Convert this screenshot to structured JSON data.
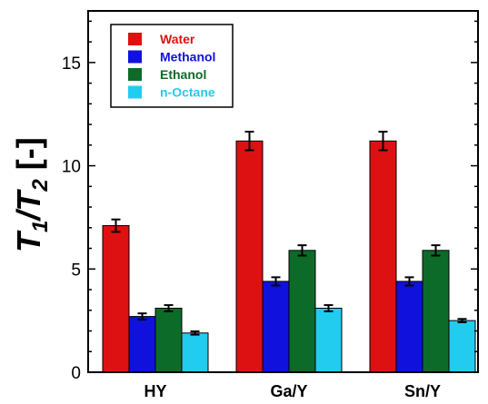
{
  "chart_data": {
    "type": "bar",
    "categories": [
      "HY",
      "Ga/Y",
      "Sn/Y"
    ],
    "series": [
      {
        "name": "Water",
        "color": "#dd1111",
        "values": [
          7.1,
          11.2,
          11.2
        ],
        "errors": [
          0.3,
          0.45,
          0.45
        ]
      },
      {
        "name": "Methanol",
        "color": "#1111dd",
        "values": [
          2.7,
          4.4,
          4.4
        ],
        "errors": [
          0.15,
          0.2,
          0.2
        ]
      },
      {
        "name": "Ethanol",
        "color": "#0d6b2a",
        "values": [
          3.1,
          5.9,
          5.9
        ],
        "errors": [
          0.15,
          0.25,
          0.25
        ]
      },
      {
        "name": "n-Octane",
        "color": "#22ccee",
        "values": [
          1.9,
          3.1,
          2.5
        ],
        "errors": [
          0.08,
          0.15,
          0.08
        ]
      }
    ],
    "title": "",
    "xlabel": "",
    "ylabel": "T1/T2 [-]",
    "ylim": [
      0,
      17.5
    ],
    "yticks": [
      0,
      5,
      10,
      15
    ],
    "grid": false,
    "legend_position": "top-left"
  }
}
